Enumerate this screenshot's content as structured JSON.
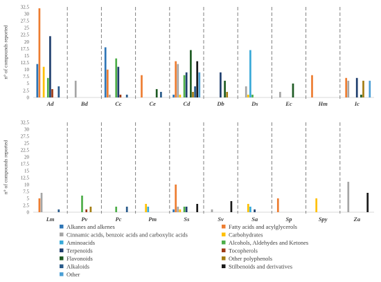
{
  "chart_data": {
    "type": "bar",
    "ylim": [
      0,
      32.5
    ],
    "yticks": [
      0,
      2.5,
      5,
      7.5,
      10,
      12.5,
      15,
      17.5,
      20,
      22.5,
      25,
      27.5,
      30,
      32.5
    ],
    "ytick_labels": [
      "0",
      "2.5",
      "5",
      "7.5",
      "10",
      "12.5",
      "15",
      "17.5",
      "20",
      "22.5",
      "25",
      "27.5",
      "30",
      "32.5"
    ],
    "grid": false,
    "legend_position": "bottom",
    "series": [
      {
        "name": "Alkanes and alkenes",
        "color": "#2e75b6"
      },
      {
        "name": "Fatty acids and acylglycerols",
        "color": "#ed7d31"
      },
      {
        "name": "Cinnamic acids, benzoic acids and carboxylic acids",
        "color": "#a5a5a5"
      },
      {
        "name": "Carbohydrates",
        "color": "#ffc000"
      },
      {
        "name": "Aminoacids",
        "color": "#38a9d8"
      },
      {
        "name": "Alcohols, Aldehydes and Ketones",
        "color": "#4eae49"
      },
      {
        "name": "Terpenoids",
        "color": "#1f3f6e"
      },
      {
        "name": "Tocopherols",
        "color": "#9e3b16"
      },
      {
        "name": "Flavonoids",
        "color": "#1e5b23"
      },
      {
        "name": "Other polyphenols",
        "color": "#a37d12"
      },
      {
        "name": "Alkaloids",
        "color": "#295a8a"
      },
      {
        "name": "Stilbenoids and derivatives",
        "color": "#1a1a1a"
      },
      {
        "name": "Other",
        "color": "#4b9fd5"
      }
    ],
    "panels": [
      {
        "ylabel": "n° of compounds reported",
        "categories": [
          {
            "label": "Ad",
            "values": [
              12,
              32,
              0,
              11,
              0,
              7,
              22,
              3,
              0,
              0,
              4,
              0,
              0
            ]
          },
          {
            "label": "Bd",
            "values": [
              0,
              0,
              6,
              0,
              0,
              0,
              0,
              0,
              0,
              0,
              0,
              0,
              0
            ]
          },
          {
            "label": "Cc",
            "values": [
              18,
              10,
              1,
              0,
              0,
              14,
              11,
              1,
              0,
              0,
              1,
              0,
              0
            ]
          },
          {
            "label": "Ce",
            "values": [
              0,
              8,
              0,
              0,
              0,
              0,
              0,
              0,
              3,
              0,
              2,
              0,
              0
            ]
          },
          {
            "label": "Cd",
            "values": [
              1,
              13,
              12,
              1,
              0,
              8,
              9,
              0,
              17,
              2,
              4,
              13,
              9
            ]
          },
          {
            "label": "Db",
            "values": [
              0,
              0,
              0,
              0,
              0,
              0,
              9,
              0,
              6,
              2,
              0,
              0,
              0
            ]
          },
          {
            "label": "Ds",
            "values": [
              0,
              0,
              4,
              1,
              17,
              1,
              0,
              0,
              0,
              0,
              0,
              0,
              0
            ]
          },
          {
            "label": "Ec",
            "values": [
              0,
              0,
              2,
              0,
              0,
              0,
              0,
              0,
              5,
              0,
              0,
              0,
              0
            ]
          },
          {
            "label": "Hm",
            "values": [
              0,
              8,
              0,
              0,
              0,
              0,
              0,
              0,
              0,
              0,
              0,
              0,
              0
            ]
          },
          {
            "label": "Ic",
            "values": [
              0,
              7,
              6,
              0,
              0,
              0,
              7,
              0,
              1,
              6,
              0,
              0,
              6
            ]
          }
        ]
      },
      {
        "ylabel": "n° of compounds reported",
        "categories": [
          {
            "label": "Lm",
            "values": [
              0,
              5,
              7,
              0,
              0,
              0,
              0,
              0,
              0,
              0,
              1,
              0,
              0
            ]
          },
          {
            "label": "Pv",
            "values": [
              0,
              0,
              0,
              0,
              0,
              6,
              0,
              1,
              0,
              2,
              0,
              0,
              0
            ]
          },
          {
            "label": "Pc",
            "values": [
              0,
              0,
              0,
              0,
              0,
              2,
              0,
              0,
              0,
              0,
              2,
              0,
              0
            ]
          },
          {
            "label": "Pm",
            "values": [
              0,
              0,
              0,
              3,
              2,
              0,
              0,
              0,
              0,
              0,
              0,
              0,
              0
            ]
          },
          {
            "label": "Ss",
            "values": [
              1,
              10,
              2,
              1,
              0,
              2,
              2,
              0,
              0,
              0,
              0,
              3,
              0
            ]
          },
          {
            "label": "Sv",
            "values": [
              0,
              0,
              1,
              0,
              0,
              0,
              0,
              0,
              0,
              0,
              0,
              4,
              0
            ]
          },
          {
            "label": "Sa",
            "values": [
              0,
              0,
              0,
              3,
              2,
              0,
              1,
              0,
              0,
              0,
              0,
              0,
              0
            ]
          },
          {
            "label": "Sp",
            "values": [
              0,
              5,
              0,
              0,
              0,
              0,
              0,
              0,
              0,
              0,
              0,
              0,
              0
            ]
          },
          {
            "label": "Spy",
            "values": [
              0,
              0,
              0,
              5,
              0,
              0,
              0,
              0,
              0,
              0,
              0,
              0,
              0
            ]
          },
          {
            "label": "Za",
            "values": [
              0,
              0,
              11,
              0,
              0,
              0,
              0,
              0,
              0,
              0,
              0,
              7,
              0
            ]
          }
        ]
      }
    ]
  }
}
